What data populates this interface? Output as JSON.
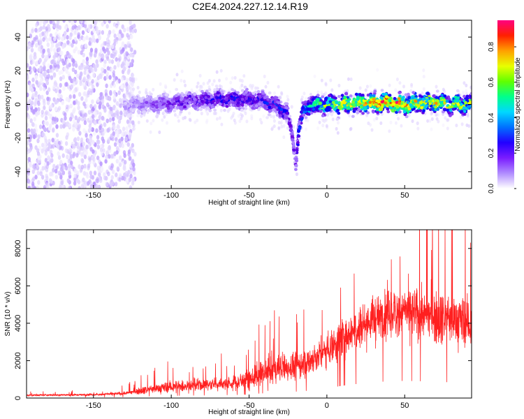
{
  "figure_title": "C2E4.2024.227.12.14.R19",
  "chart_data": [
    {
      "type": "heatmap",
      "title": "",
      "xlabel": "Height of straight line (km)",
      "ylabel": "Frequency (Hz)",
      "xlim": [
        -193,
        93
      ],
      "ylim": [
        -50,
        50
      ],
      "x_ticks": [
        -150,
        -100,
        -50,
        0,
        50
      ],
      "y_ticks": [
        -40,
        -20,
        0,
        20,
        40
      ],
      "colorbar": {
        "label": "Normalized spectral amplitude",
        "range": [
          0.0,
          0.95
        ],
        "ticks": [
          0.0,
          0.2,
          0.4,
          0.6,
          0.8
        ],
        "colormap": [
          "#ffffff",
          "#d9c9ff",
          "#a070ff",
          "#6a00e0",
          "#0000ff",
          "#00c8ff",
          "#00ff80",
          "#c8ff00",
          "#ffff00",
          "#ff8000",
          "#ff0000",
          "#ff00a0"
        ]
      },
      "ridge": {
        "description_points_x": [
          -130,
          -110,
          -90,
          -70,
          -50,
          -40,
          -30,
          -25,
          -22,
          -20,
          -18,
          -15,
          -10,
          0,
          10,
          20,
          30,
          40,
          50,
          60,
          70,
          80,
          90
        ],
        "frequency_hz": [
          0,
          0,
          2,
          3,
          3,
          2,
          -2,
          -6,
          -20,
          -35,
          -15,
          -3,
          0,
          0,
          0,
          1,
          1,
          1,
          0,
          1,
          1,
          0,
          0
        ],
        "peak_amplitude": [
          0.15,
          0.25,
          0.3,
          0.35,
          0.35,
          0.35,
          0.4,
          0.35,
          0.3,
          0.25,
          0.4,
          0.45,
          0.55,
          0.65,
          0.7,
          0.75,
          0.85,
          0.95,
          0.85,
          0.75,
          0.75,
          0.7,
          0.65
        ]
      }
    },
    {
      "type": "line",
      "title": "",
      "xlabel": "Height of straight line (km)",
      "ylabel": "SNR (10 * v/v)",
      "xlim": [
        -193,
        93
      ],
      "ylim": [
        0,
        9000
      ],
      "x_ticks": [
        -150,
        -100,
        -50,
        0,
        50
      ],
      "y_ticks": [
        0,
        2000,
        4000,
        6000,
        8000
      ],
      "series_color": "#ff2020",
      "envelope": {
        "x": [
          -193,
          -150,
          -130,
          -120,
          -100,
          -80,
          -60,
          -50,
          -40,
          -30,
          -20,
          -10,
          0,
          10,
          20,
          30,
          40,
          50,
          60,
          70,
          80,
          93
        ],
        "baseline": [
          150,
          180,
          250,
          400,
          600,
          700,
          800,
          1000,
          1300,
          1600,
          1700,
          2000,
          2600,
          3300,
          3800,
          4200,
          4500,
          4600,
          4500,
          4400,
          4200,
          4000
        ],
        "spread": [
          100,
          120,
          200,
          400,
          700,
          700,
          800,
          1200,
          1500,
          1800,
          1600,
          1800,
          2000,
          2400,
          2600,
          2800,
          2800,
          3000,
          3000,
          3000,
          3000,
          3000
        ]
      }
    }
  ]
}
